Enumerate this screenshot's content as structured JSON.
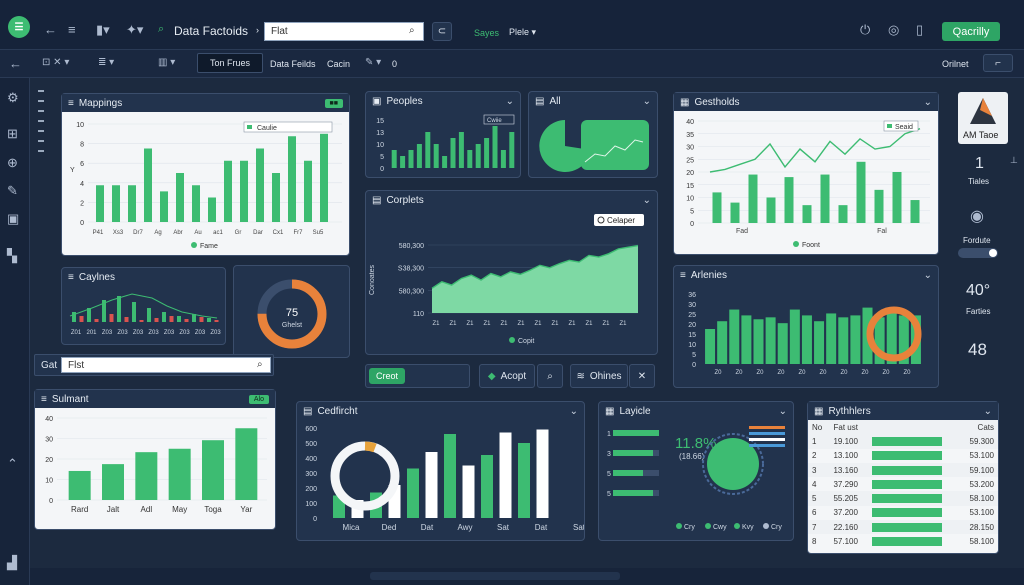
{
  "app": {
    "title": "Data Factoids",
    "search_value": "Flat",
    "saved_label": "Sayes",
    "profile_label": "Plele",
    "primary_button": "Qacrilly"
  },
  "toolbar": {
    "tab_active": "Ton Frues",
    "tab2": "Data Feilds",
    "tab3": "Cacin",
    "edit_count": "0",
    "right_label": "Orilnet"
  },
  "left_search": {
    "label": "Gat",
    "value": "Flst"
  },
  "panels": {
    "mappings": {
      "title": "Mappings",
      "tag": "",
      "legend": "Fame",
      "legend_box": "Caulie",
      "yticks": [
        "10",
        "8",
        "6",
        "4",
        "2",
        "0"
      ],
      "xticks": [
        "P41",
        "Xs3",
        "Dr7",
        "Ag",
        "Abr",
        "Au",
        "ac1",
        "Gr",
        "Dar",
        "Cx1",
        "Fr7",
        "Su5"
      ],
      "values": [
        3,
        3,
        3,
        6,
        2.5,
        4,
        3,
        2,
        5,
        5,
        6,
        4,
        7,
        5,
        7.2
      ]
    },
    "peoples": {
      "title": "Peoples",
      "legend_box": "Cwiie",
      "yticks": [
        "15",
        "13",
        "10",
        "5",
        "0"
      ],
      "values": [
        3,
        2,
        3,
        4,
        6,
        4,
        2,
        5,
        6,
        3,
        4,
        5,
        7,
        3,
        6
      ]
    },
    "all": {
      "title": "All"
    },
    "gestholds": {
      "title": "Gestholds",
      "legend": "Foont",
      "legend_box": "Seaid",
      "yticks": [
        "40",
        "35",
        "30",
        "25",
        "20",
        "15",
        "10",
        "5",
        "0"
      ],
      "xticks": [
        "Fad",
        "Fal"
      ],
      "bars": [
        12,
        8,
        19,
        10,
        18,
        7,
        19,
        7,
        24,
        13,
        20,
        9
      ],
      "line": [
        20,
        21,
        23,
        25,
        31,
        22,
        29,
        24,
        32,
        27,
        33,
        29,
        30,
        35,
        37
      ]
    },
    "caylnes": {
      "title": "Caylnes",
      "xticks": [
        "Z01",
        "201",
        "Z03",
        "Z03",
        "Z03",
        "Z03",
        "Z03",
        "Z03",
        "Z03",
        "Z03"
      ]
    },
    "donut": {
      "value": "75",
      "label": "Ghelst",
      "percent": 75
    },
    "corplets": {
      "title": "Corplets",
      "legend_box": "Celaper",
      "legend": "Copit",
      "yticks": [
        "580,300",
        "S38,300",
        "580,300",
        "110"
      ],
      "ylabel": "Conoates",
      "area": [
        30,
        38,
        34,
        42,
        46,
        40,
        48,
        44,
        50,
        47,
        52,
        58,
        55,
        60,
        64,
        62,
        70,
        68,
        72,
        78,
        80,
        82
      ]
    },
    "arlenies": {
      "title": "Arlenies",
      "yticks": [
        "36",
        "30",
        "25",
        "20",
        "15",
        "10",
        "5",
        "0"
      ],
      "values": [
        18,
        22,
        28,
        25,
        23,
        24,
        21,
        28,
        25,
        22,
        26,
        24,
        25,
        29,
        24,
        27,
        25,
        25
      ]
    },
    "sulmant": {
      "title": "Sulmant",
      "tag": "Alo",
      "yticks": [
        "40",
        "30",
        "20",
        "10",
        "0"
      ],
      "xticks": [
        "Rard",
        "Jalt",
        "Adl",
        "May",
        "Toga",
        "Yar"
      ],
      "values": [
        17,
        21,
        28,
        30,
        35,
        42
      ]
    },
    "cedfircht": {
      "title": "Cedfircht",
      "yticks": [
        "600",
        "500",
        "400",
        "300",
        "200",
        "100",
        "0"
      ],
      "xticks": [
        "Mica",
        "Ded",
        "Dat",
        "Awy",
        "Sat",
        "Dat",
        "Sat"
      ],
      "values": [
        15,
        12,
        17,
        22,
        33,
        44,
        56,
        35,
        42,
        57,
        50,
        59
      ]
    },
    "layicle": {
      "title": "Layicle",
      "big_value": "11.8%",
      "sub_value": "(18.66)",
      "rows": [
        "1",
        "3",
        "5",
        "5"
      ],
      "legend": [
        "Cry",
        "Cwy",
        "Kvy",
        "Cry"
      ]
    },
    "rythhlers": {
      "title": "Rythhlers",
      "col1": "No",
      "col2": "Fat ust",
      "col3": "Cats",
      "rows": [
        {
          "n": "1",
          "a": "19.100",
          "b": "59.300"
        },
        {
          "n": "2",
          "a": "13.100",
          "b": "53.100"
        },
        {
          "n": "3",
          "a": "13.160",
          "b": "59.100"
        },
        {
          "n": "4",
          "a": "37.290",
          "b": "53.200"
        },
        {
          "n": "5",
          "a": "55.205",
          "b": "58.100"
        },
        {
          "n": "6",
          "a": "37.200",
          "b": "53.100"
        },
        {
          "n": "7",
          "a": "22.160",
          "b": "28.150"
        },
        {
          "n": "8",
          "a": "57.100",
          "b": "58.100"
        }
      ]
    }
  },
  "bottom_buttons": {
    "create": "Creot",
    "accept": "Acopt",
    "ohnes": "Ohines"
  },
  "right_rail": {
    "card_label": "AM Taoe",
    "stat1_value": "1",
    "stat1_label": "Tiales",
    "stat2_label": "Fordute",
    "stat3_value": "40°",
    "stat3_label": "Farties",
    "stat4_value": "48"
  },
  "colors": {
    "accent": "#3dbc72",
    "background": "#1c2a3f",
    "panel": "#22334d",
    "donut_orange": "#e8823b"
  }
}
